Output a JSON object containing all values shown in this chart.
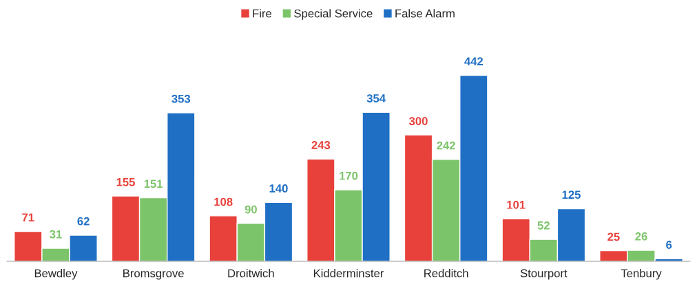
{
  "chart_data": {
    "type": "bar",
    "categories": [
      "Bewdley",
      "Bromsgrove",
      "Droitwich",
      "Kidderminster",
      "Redditch",
      "Stourport",
      "Tenbury"
    ],
    "series": [
      {
        "name": "Fire",
        "color": "#e8413b",
        "values": [
          71,
          155,
          108,
          243,
          300,
          101,
          25
        ]
      },
      {
        "name": "Special Service",
        "color": "#7cc46a",
        "values": [
          31,
          151,
          90,
          170,
          242,
          52,
          26
        ]
      },
      {
        "name": "False Alarm",
        "color": "#1f6fc5",
        "values": [
          62,
          353,
          140,
          354,
          442,
          125,
          6
        ]
      }
    ],
    "data_labels": true,
    "legend": "top",
    "grid": false
  }
}
